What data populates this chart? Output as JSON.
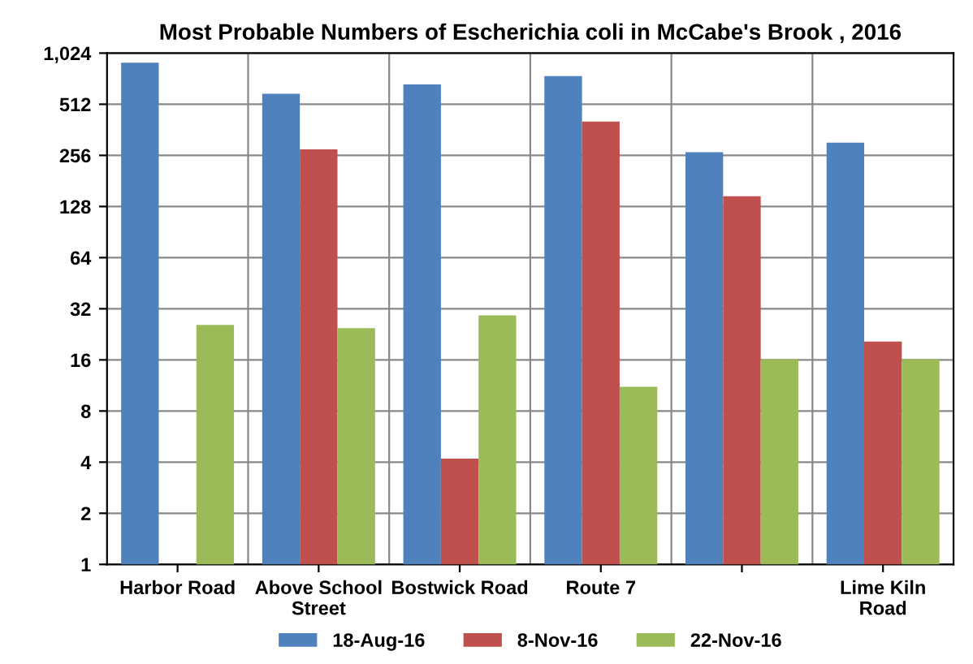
{
  "chart_data": {
    "type": "bar",
    "title": "Most Probable Numbers of Escherichia coli in McCabe's Brook , 2016",
    "categories": [
      "Harbor Road",
      "Above School Street",
      "Bostwick Road",
      "Route 7",
      null,
      "Lime Kiln Road"
    ],
    "series": [
      {
        "name": "18-Aug-16",
        "color": "#4f81bd",
        "values": [
          900,
          590,
          670,
          750,
          267,
          304
        ]
      },
      {
        "name": "8-Nov-16",
        "color": "#c0504d",
        "values": [
          null,
          278,
          4.2,
          405,
          147,
          20.5
        ]
      },
      {
        "name": "22-Nov-16",
        "color": "#9bbb59",
        "values": [
          25.7,
          24.6,
          29.3,
          11.1,
          16.1,
          16.1
        ]
      }
    ],
    "log": true,
    "ylim": [
      1,
      1024
    ],
    "yticks": [
      1,
      2,
      4,
      8,
      16,
      32,
      64,
      128,
      256,
      512,
      {
        "value": 1024,
        "label": "1,024"
      }
    ],
    "grid": true,
    "legend": "bottom"
  }
}
